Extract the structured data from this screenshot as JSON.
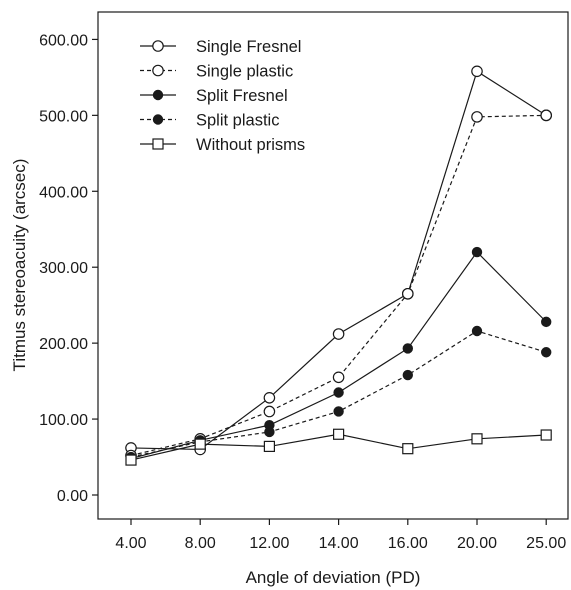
{
  "chart_data": {
    "type": "line",
    "xlabel": "Angle of deviation (PD)",
    "ylabel": "Titmus stereoacuity (arcsec)",
    "categories": [
      "4.00",
      "8.00",
      "12.00",
      "14.00",
      "16.00",
      "20.00",
      "25.00"
    ],
    "ylim": [
      0,
      600
    ],
    "yticks": [
      "0.00",
      "100.00",
      "200.00",
      "300.00",
      "400.00",
      "500.00",
      "600.00"
    ],
    "grid": false,
    "legend_position": "top-left",
    "series": [
      {
        "name": "Single Fresnel",
        "marker": "circle-open",
        "line": "solid",
        "values": [
          62,
          60,
          128,
          212,
          265,
          558,
          500
        ]
      },
      {
        "name": "Single plastic",
        "marker": "circle-open",
        "line": "dashed",
        "values": [
          52,
          74,
          110,
          155,
          265,
          498,
          500
        ]
      },
      {
        "name": "Split Fresnel",
        "marker": "circle-filled",
        "line": "solid",
        "values": [
          48,
          72,
          92,
          135,
          193,
          320,
          228
        ]
      },
      {
        "name": "Split plastic",
        "marker": "circle-filled",
        "line": "dashed",
        "values": [
          50,
          70,
          83,
          110,
          158,
          216,
          188
        ]
      },
      {
        "name": "Without prisms",
        "marker": "square-open",
        "line": "solid",
        "values": [
          46,
          67,
          64,
          80,
          61,
          74,
          79
        ]
      }
    ],
    "colors": {
      "line": "#1a1a1a",
      "background": "#ffffff"
    }
  }
}
